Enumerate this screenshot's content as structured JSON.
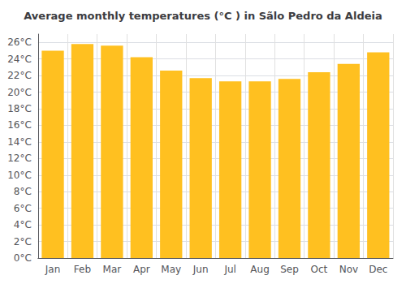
{
  "chart_data": {
    "type": "bar",
    "title": "Average monthly temperatures (°C ) in Sãlo Pedro da Aldeia",
    "categories": [
      "Jan",
      "Feb",
      "Mar",
      "Apr",
      "May",
      "Jun",
      "Jul",
      "Aug",
      "Sep",
      "Oct",
      "Nov",
      "Dec"
    ],
    "values": [
      25.0,
      25.8,
      25.6,
      24.2,
      22.6,
      21.7,
      21.3,
      21.3,
      21.6,
      22.4,
      23.4,
      24.8
    ],
    "color": "#FFC020",
    "ylim": [
      0,
      27
    ],
    "yticks": [
      {
        "value": 0,
        "label": "0°C"
      },
      {
        "value": 2,
        "label": "2°C"
      },
      {
        "value": 4,
        "label": "4°C"
      },
      {
        "value": 6,
        "label": "6°C"
      },
      {
        "value": 8,
        "label": "8°C"
      },
      {
        "value": 10,
        "label": "10°C"
      },
      {
        "value": 12,
        "label": "12°C"
      },
      {
        "value": 14,
        "label": "14°C"
      },
      {
        "value": 16,
        "label": "16°C"
      },
      {
        "value": 18,
        "label": "18°C"
      },
      {
        "value": 20,
        "label": "20°C"
      },
      {
        "value": 22,
        "label": "22°C"
      },
      {
        "value": 24,
        "label": "24°C"
      },
      {
        "value": 26,
        "label": "26°C"
      }
    ],
    "grid": true
  }
}
